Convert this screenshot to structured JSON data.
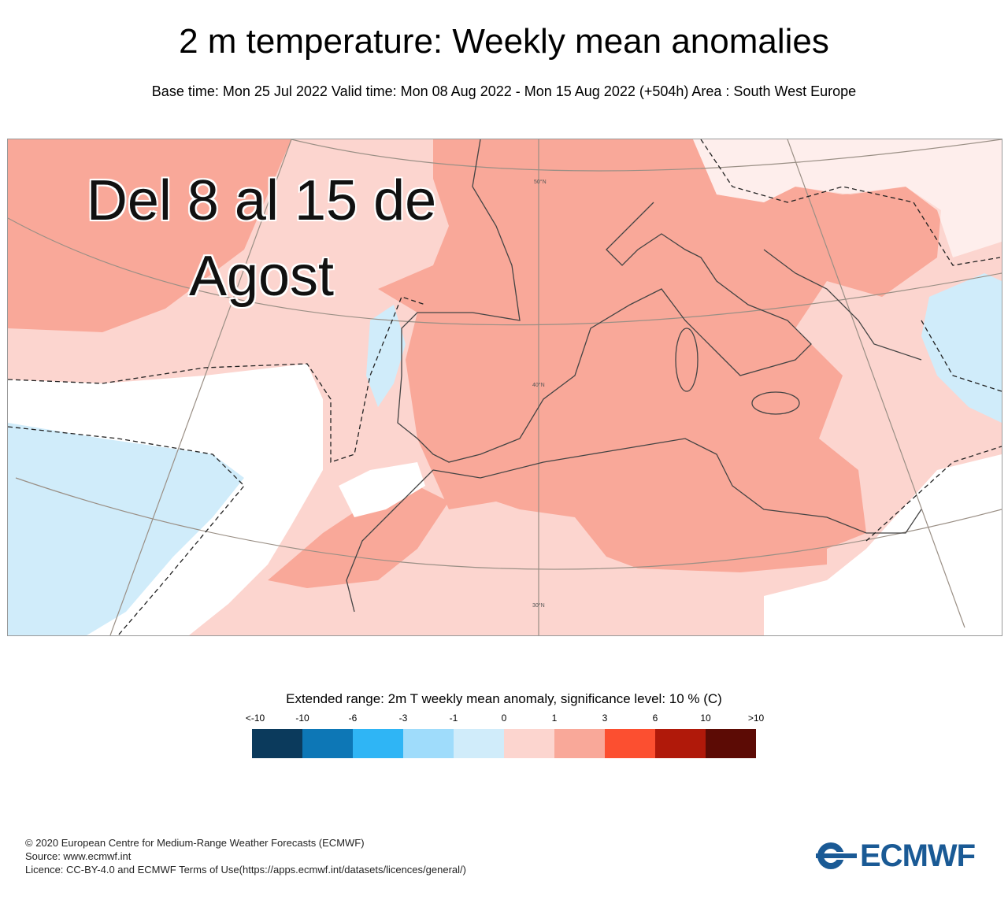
{
  "header": {
    "title": "2 m temperature: Weekly mean anomalies",
    "subtitle": "Base time: Mon 25 Jul 2022 Valid time: Mon 08 Aug 2022 - Mon 15 Aug 2022 (+504h) Area : South West Europe"
  },
  "map": {
    "overlay_line1": "Del 8 al 15 de",
    "overlay_line2": "Agost",
    "lat_labels": [
      "50°N",
      "40°N",
      "30°N"
    ],
    "colors": {
      "pale_warm": "#fcd5cf",
      "warm": "#f9a899",
      "pale_cold": "#d0ecfa",
      "neutral": "#ffffff"
    }
  },
  "legend": {
    "title": "Extended range: 2m T weekly mean anomaly, significance level: 10 % (C)",
    "labels": [
      "<-10",
      "-10",
      "-6",
      "-3",
      "-1",
      "0",
      "1",
      "3",
      "6",
      "10",
      ">10"
    ],
    "colors": [
      "#0b3a5c",
      "#0d77b6",
      "#2fb5f5",
      "#9fdcfb",
      "#d0ecfa",
      "#fcd5cf",
      "#f9a899",
      "#fc4f30",
      "#b0190a",
      "#5c0b05"
    ]
  },
  "footer": {
    "line1": "© 2020 European Centre for Medium-Range Weather Forecasts (ECMWF)",
    "line2": "Source: www.ecmwf.int",
    "line3": "Licence: CC-BY-4.0 and ECMWF Terms of Use(https://apps.ecmwf.int/datasets/licences/general/)"
  },
  "logo": {
    "text": "ECMWF"
  }
}
